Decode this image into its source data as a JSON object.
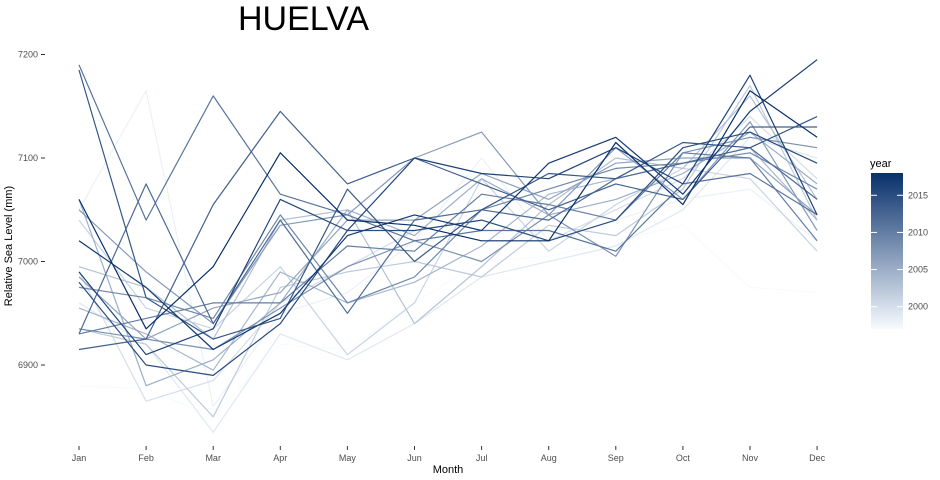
{
  "chart_data": {
    "type": "line",
    "title": "HUELVA",
    "xlabel": "Month",
    "ylabel": "Relative Sea Level (mm)",
    "categories": [
      "Jan",
      "Feb",
      "Mar",
      "Apr",
      "May",
      "Jun",
      "Jul",
      "Aug",
      "Sep",
      "Oct",
      "Nov",
      "Dec"
    ],
    "ylim": [
      6830,
      7210
    ],
    "yticks": [
      6900,
      7000,
      7100,
      7200
    ],
    "grid": false,
    "legend": {
      "title": "year",
      "position": "right",
      "type": "colorbar",
      "range": [
        1997,
        2018
      ],
      "ticks": [
        2000,
        2005,
        2010,
        2015
      ],
      "low_color": "#f7fbff",
      "high_color": "#08306b"
    },
    "series": [
      {
        "year": 1997,
        "values": [
          6880,
          6877,
          6850,
          6920,
          6915,
          6960,
          7000,
          7005,
          7020,
          7035,
          6975,
          6970
        ]
      },
      {
        "year": 1998,
        "values": [
          7050,
          7165,
          6860,
          6950,
          6970,
          7020,
          7100,
          7020,
          7040,
          7060,
          7070,
          7020
        ]
      },
      {
        "year": 1999,
        "values": [
          6960,
          6920,
          6835,
          6930,
          6905,
          6940,
          6985,
          7000,
          7015,
          7050,
          7120,
          7100
        ]
      },
      {
        "year": 2000,
        "values": [
          6990,
          6865,
          6885,
          6960,
          6995,
          7030,
          7040,
          7020,
          7050,
          7080,
          7140,
          7080
        ]
      },
      {
        "year": 2001,
        "values": [
          7040,
          6955,
          6935,
          6995,
          6910,
          6960,
          7080,
          7010,
          7055,
          7090,
          7080,
          7010
        ]
      },
      {
        "year": 2002,
        "values": [
          6935,
          6920,
          6850,
          6975,
          6990,
          7000,
          6985,
          7035,
          7025,
          7070,
          7170,
          7040
        ]
      },
      {
        "year": 2003,
        "values": [
          6995,
          6975,
          6925,
          7040,
          7050,
          6940,
          6995,
          7055,
          7100,
          7090,
          7160,
          7060
        ]
      },
      {
        "year": 2004,
        "values": [
          6955,
          6930,
          6895,
          6990,
          6960,
          6980,
          7015,
          7065,
          7080,
          7095,
          7110,
          7040
        ]
      },
      {
        "year": 2005,
        "values": [
          7060,
          6880,
          6905,
          6960,
          7050,
          7025,
          7080,
          7045,
          7060,
          7085,
          7125,
          7075
        ]
      },
      {
        "year": 2006,
        "values": [
          6985,
          6925,
          6955,
          6970,
          7040,
          7040,
          7085,
          7060,
          7095,
          7100,
          7100,
          7045
        ]
      },
      {
        "year": 2007,
        "values": [
          7050,
          6990,
          6940,
          7035,
          7045,
          7100,
          7125,
          7045,
          7110,
          7060,
          7135,
          7030
        ]
      },
      {
        "year": 2008,
        "values": [
          6935,
          6925,
          6915,
          6955,
          6995,
          7020,
          7000,
          7045,
          7005,
          7105,
          7120,
          7110
        ]
      },
      {
        "year": 2009,
        "values": [
          6975,
          6965,
          6945,
          7045,
          6960,
          6985,
          7050,
          7070,
          7090,
          7095,
          7105,
          7070
        ]
      },
      {
        "year": 2010,
        "values": [
          6930,
          6945,
          6960,
          6960,
          7015,
          7010,
          7065,
          7055,
          7040,
          7105,
          7100,
          7020
        ]
      },
      {
        "year": 2011,
        "values": [
          7190,
          7040,
          7160,
          7065,
          7045,
          7020,
          7030,
          7030,
          7010,
          7075,
          7085,
          7045
        ]
      },
      {
        "year": 2012,
        "values": [
          6930,
          7075,
          6940,
          7040,
          6950,
          7040,
          7050,
          7040,
          7080,
          7095,
          7110,
          7060
        ]
      },
      {
        "year": 2013,
        "values": [
          6915,
          6925,
          7055,
          7145,
          7075,
          7100,
          7075,
          7050,
          7075,
          7060,
          7130,
          7130
        ]
      },
      {
        "year": 2014,
        "values": [
          7185,
          6965,
          6925,
          6945,
          7070,
          7000,
          7050,
          7085,
          7080,
          7115,
          7110,
          7140
        ]
      },
      {
        "year": 2015,
        "values": [
          6980,
          6900,
          6890,
          6940,
          7030,
          7030,
          7040,
          7020,
          7040,
          7110,
          7125,
          7095
        ]
      },
      {
        "year": 2016,
        "values": [
          6990,
          6910,
          6935,
          7060,
          7030,
          7100,
          7085,
          7080,
          7110,
          7075,
          7180,
          7045
        ]
      },
      {
        "year": 2017,
        "values": [
          7020,
          6975,
          6915,
          6950,
          7025,
          7045,
          7030,
          7095,
          7120,
          7065,
          7145,
          7195
        ]
      },
      {
        "year": 2018,
        "values": [
          7060,
          6935,
          6995,
          7105,
          7040,
          7035,
          7020,
          7020,
          7115,
          7055,
          7165,
          7120
        ]
      }
    ]
  }
}
